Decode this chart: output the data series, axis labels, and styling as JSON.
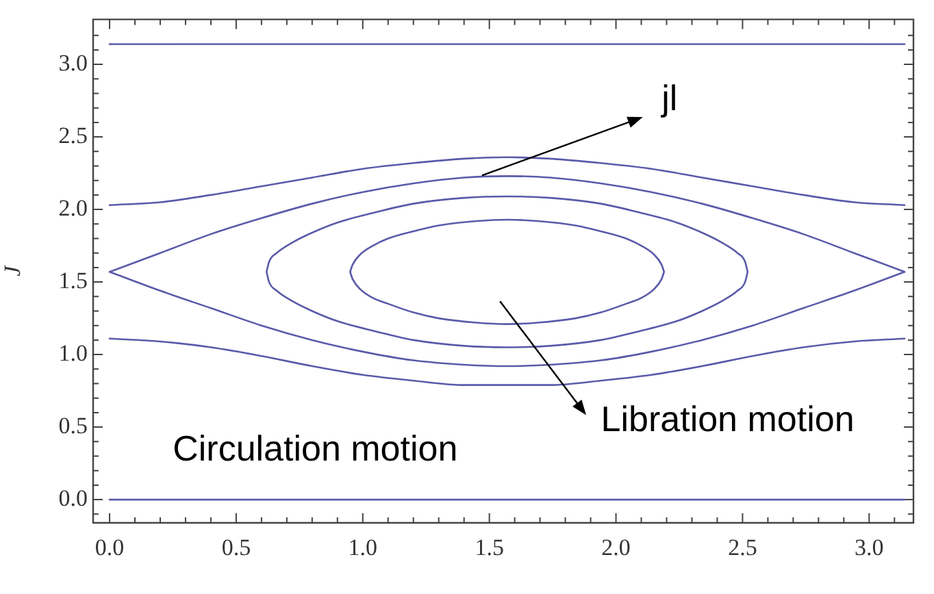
{
  "chart_data": {
    "type": "line",
    "ylabel": "J",
    "xlim": [
      -0.065,
      3.175
    ],
    "ylim": [
      -0.16,
      3.31
    ],
    "xticks": [
      {
        "value": 0,
        "label": "0.0"
      },
      {
        "value": 0.1,
        "label": null
      },
      {
        "value": 0.2,
        "label": null
      },
      {
        "value": 0.3,
        "label": null
      },
      {
        "value": 0.4,
        "label": null
      },
      0.5,
      {
        "value": 0.6,
        "label": null
      },
      {
        "value": 0.7,
        "label": null
      },
      {
        "value": 0.8,
        "label": null
      },
      {
        "value": 0.9,
        "label": null
      },
      {
        "value": 1,
        "label": "1.0"
      },
      {
        "value": 1.1,
        "label": null
      },
      {
        "value": 1.2,
        "label": null
      },
      {
        "value": 1.3,
        "label": null
      },
      {
        "value": 1.4,
        "label": null
      },
      1.5,
      {
        "value": 1.6,
        "label": null
      },
      {
        "value": 1.7,
        "label": null
      },
      {
        "value": 1.8,
        "label": null
      },
      {
        "value": 1.9,
        "label": null
      },
      {
        "value": 2,
        "label": "2.0"
      },
      {
        "value": 2.1,
        "label": null
      },
      {
        "value": 2.2,
        "label": null
      },
      {
        "value": 2.3,
        "label": null
      },
      {
        "value": 2.4,
        "label": null
      },
      2.5,
      {
        "value": 2.6,
        "label": null
      },
      {
        "value": 2.7,
        "label": null
      },
      {
        "value": 2.8,
        "label": null
      },
      {
        "value": 2.9,
        "label": null
      },
      {
        "value": 3,
        "label": "3.0"
      },
      {
        "value": 3.1,
        "label": null
      }
    ],
    "yticks": [
      {
        "value": -0.1,
        "label": null
      },
      {
        "value": 0,
        "label": "0.0"
      },
      {
        "value": 0.1,
        "label": null
      },
      {
        "value": 0.2,
        "label": null
      },
      {
        "value": 0.3,
        "label": null
      },
      {
        "value": 0.4,
        "label": null
      },
      0.5,
      {
        "value": 0.6,
        "label": null
      },
      {
        "value": 0.7,
        "label": null
      },
      {
        "value": 0.8,
        "label": null
      },
      {
        "value": 0.9,
        "label": null
      },
      {
        "value": 1,
        "label": "1.0"
      },
      {
        "value": 1.1,
        "label": null
      },
      {
        "value": 1.2,
        "label": null
      },
      {
        "value": 1.3,
        "label": null
      },
      {
        "value": 1.4,
        "label": null
      },
      1.5,
      {
        "value": 1.6,
        "label": null
      },
      {
        "value": 1.7,
        "label": null
      },
      {
        "value": 1.8,
        "label": null
      },
      {
        "value": 1.9,
        "label": null
      },
      {
        "value": 2,
        "label": "2.0"
      },
      {
        "value": 2.1,
        "label": null
      },
      {
        "value": 2.2,
        "label": null
      },
      {
        "value": 2.3,
        "label": null
      },
      {
        "value": 2.4,
        "label": null
      },
      2.5,
      {
        "value": 2.6,
        "label": null
      },
      {
        "value": 2.7,
        "label": null
      },
      {
        "value": 2.8,
        "label": null
      },
      {
        "value": 2.9,
        "label": null
      },
      {
        "value": 3,
        "label": "3.0"
      },
      {
        "value": 3.1,
        "label": null
      },
      {
        "value": 3.2,
        "label": null
      }
    ],
    "annotations": [
      "jl",
      "Libration motion",
      "Circulation motion"
    ],
    "series": [
      {
        "color": "#5a5aaa",
        "x": [
          0,
          3.14
        ],
        "values": [
          3.14,
          3.14
        ]
      },
      {
        "color": "#5a5aaa",
        "x": [
          0,
          0.2,
          0.4,
          0.6,
          0.8,
          1,
          1.2,
          1.4,
          1.57,
          1.74,
          1.94,
          2.14,
          2.34,
          2.54,
          2.74,
          2.94,
          3.14
        ],
        "values": [
          2.03,
          2.05,
          2.1,
          2.16,
          2.22,
          2.28,
          2.32,
          2.35,
          2.36,
          2.35,
          2.32,
          2.28,
          2.22,
          2.16,
          2.1,
          2.05,
          2.03
        ]
      },
      {
        "color": "#5a5aaa",
        "x": [
          0,
          0.2,
          0.4,
          0.6,
          0.8,
          1,
          1.2,
          1.4,
          1.57,
          1.74,
          1.94,
          2.14,
          2.34,
          2.54,
          2.74,
          2.94,
          3.14,
          null,
          0,
          0.2,
          0.4,
          0.6,
          0.8,
          1,
          1.2,
          1.4,
          1.57,
          1.74,
          1.94,
          2.14,
          2.34,
          2.54,
          2.74,
          2.94,
          3.14
        ],
        "values": [
          1.57,
          1.7,
          1.83,
          1.94,
          2.04,
          2.12,
          2.18,
          2.22,
          2.23,
          2.22,
          2.18,
          2.12,
          2.04,
          1.94,
          1.83,
          1.7,
          1.57,
          null,
          1.57,
          1.44,
          1.32,
          1.2,
          1.1,
          1.02,
          0.96,
          0.93,
          0.92,
          0.93,
          0.96,
          1.02,
          1.1,
          1.2,
          1.32,
          1.44,
          1.57
        ]
      },
      {
        "color": "#5a5aaa",
        "x": [
          0.62,
          0.63,
          0.66,
          0.72,
          0.8,
          0.9,
          1.05,
          1.2,
          1.4,
          1.57,
          1.74,
          1.94,
          2.09,
          2.24,
          2.34,
          2.42,
          2.48,
          2.51,
          2.52,
          null,
          0.62,
          0.63,
          0.66,
          0.72,
          0.8,
          0.9,
          1.05,
          1.2,
          1.4,
          1.57,
          1.74,
          1.94,
          2.09,
          2.24,
          2.34,
          2.42,
          2.48,
          2.51,
          2.52
        ],
        "values": [
          1.57,
          1.64,
          1.7,
          1.77,
          1.84,
          1.91,
          1.98,
          2.04,
          2.08,
          2.09,
          2.08,
          2.04,
          1.98,
          1.91,
          1.84,
          1.77,
          1.7,
          1.64,
          1.57,
          null,
          1.57,
          1.5,
          1.44,
          1.37,
          1.3,
          1.23,
          1.16,
          1.1,
          1.06,
          1.05,
          1.06,
          1.1,
          1.16,
          1.23,
          1.3,
          1.37,
          1.44,
          1.5,
          1.57
        ]
      },
      {
        "color": "#5a5aaa",
        "x": [
          0.95,
          0.96,
          0.99,
          1.04,
          1.1,
          1.2,
          1.3,
          1.45,
          1.57,
          1.69,
          1.84,
          1.94,
          2.04,
          2.1,
          2.15,
          2.18,
          2.19,
          null,
          0.95,
          0.96,
          0.99,
          1.04,
          1.1,
          1.2,
          1.3,
          1.45,
          1.57,
          1.69,
          1.84,
          1.94,
          2.04,
          2.1,
          2.15,
          2.18,
          2.19
        ],
        "values": [
          1.57,
          1.62,
          1.69,
          1.75,
          1.8,
          1.85,
          1.89,
          1.92,
          1.93,
          1.92,
          1.89,
          1.85,
          1.8,
          1.75,
          1.69,
          1.62,
          1.57,
          null,
          1.57,
          1.52,
          1.45,
          1.39,
          1.35,
          1.29,
          1.25,
          1.22,
          1.21,
          1.22,
          1.25,
          1.29,
          1.35,
          1.39,
          1.45,
          1.52,
          1.57
        ]
      },
      {
        "color": "#5a5aaa",
        "x": [
          0,
          0.2,
          0.4,
          0.6,
          0.8,
          1,
          1.2,
          1.4,
          1.57,
          1.74,
          1.94,
          2.14,
          2.34,
          2.54,
          2.74,
          2.94,
          3.14
        ],
        "values": [
          1.11,
          1.09,
          1.05,
          0.99,
          0.92,
          0.86,
          0.82,
          0.79,
          0.79,
          0.79,
          0.82,
          0.86,
          0.92,
          0.99,
          1.05,
          1.09,
          1.11
        ]
      },
      {
        "color": "#5a5aaa",
        "x": [
          0,
          3.14
        ],
        "values": [
          0,
          0
        ]
      }
    ]
  }
}
